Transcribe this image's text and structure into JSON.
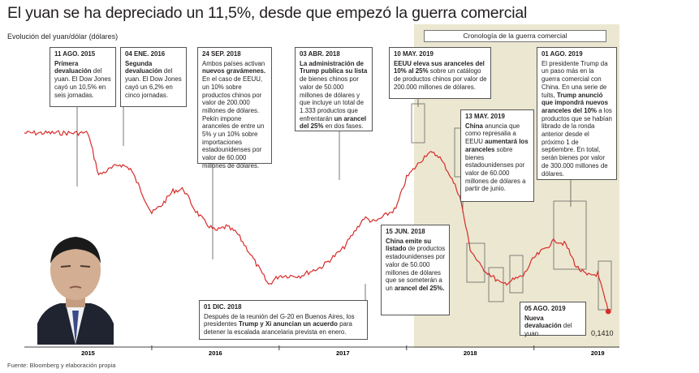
{
  "title": "El yuan se ha depreciado un 11,5%, desde que empezó la guerra comercial",
  "subtitle": "Evolución del yuan/dólar (dólares)",
  "source": "Fuente: Bloomberg y elaboración propia",
  "timeline_label": "Cronología de la guerra comercial",
  "final_value": "0,1410",
  "colors": {
    "line": "#d62c2a",
    "shade": "#ece7d0",
    "accent": "#d62c2a"
  },
  "chart_data": {
    "type": "line",
    "x_ticks": [
      "2015",
      "2016",
      "2017",
      "2018",
      "2019"
    ],
    "series_color": "#d62c2a",
    "approx_y_range": [
      0.14,
      0.165
    ],
    "series": [
      {
        "values_by_date": [
          [
            "2015-01",
            0.161
          ],
          [
            "2015-07",
            0.161
          ],
          [
            "2015-08",
            0.1563
          ],
          [
            "2015-10",
            0.1575
          ],
          [
            "2015-11",
            0.157
          ],
          [
            "2015-12",
            0.1545
          ],
          [
            "2016-01",
            0.152
          ],
          [
            "2016-02",
            0.153
          ],
          [
            "2016-03",
            0.1545
          ],
          [
            "2016-04",
            0.1547
          ],
          [
            "2016-05",
            0.1525
          ],
          [
            "2016-06",
            0.151
          ],
          [
            "2016-07",
            0.15
          ],
          [
            "2016-08",
            0.1505
          ],
          [
            "2016-09",
            0.1498
          ],
          [
            "2016-10",
            0.148
          ],
          [
            "2016-11",
            0.146
          ],
          [
            "2016-12",
            0.144
          ],
          [
            "2017-01",
            0.145
          ],
          [
            "2017-03",
            0.145
          ],
          [
            "2017-05",
            0.146
          ],
          [
            "2017-07",
            0.148
          ],
          [
            "2017-09",
            0.1515
          ],
          [
            "2017-10",
            0.151
          ],
          [
            "2017-12",
            0.1525
          ],
          [
            "2018-01",
            0.156
          ],
          [
            "2018-03",
            0.1588
          ],
          [
            "2018-04",
            0.1585
          ],
          [
            "2018-05",
            0.1565
          ],
          [
            "2018-06",
            0.154
          ],
          [
            "2018-07",
            0.148
          ],
          [
            "2018-08",
            0.146
          ],
          [
            "2018-10",
            0.144
          ],
          [
            "2018-11",
            0.1445
          ],
          [
            "2018-12",
            0.145
          ],
          [
            "2019-01",
            0.147
          ],
          [
            "2019-03",
            0.149
          ],
          [
            "2019-04",
            0.1485
          ],
          [
            "2019-05",
            0.146
          ],
          [
            "2019-06",
            0.145
          ],
          [
            "2019-07",
            0.1452
          ],
          [
            "2019-08",
            0.141
          ]
        ]
      }
    ]
  },
  "annotations": [
    {
      "date": "11 AGO. 2015",
      "html": "<b>Primera devaluación</b> del yuan. El Dow Jones cayó un 10,5% en seis jornadas."
    },
    {
      "date": "04 ENE. 2016",
      "html": "<b>Segunda devaluación</b> del yuan. El Dow Jones cayó un 6,2% en cinco jornadas."
    },
    {
      "date": "24 SEP. 2018",
      "html": "Ambos países activan <b>nuevos gravámenes.</b> En el caso de EEUU, un 10% sobre productos chinos por valor de 200.000 millones de dólares. Pekín impone aranceles de entre un 5% y un 10% sobre importaciones estadounidenses por valor de 60.000 millones de dólares."
    },
    {
      "date": "03 ABR. 2018",
      "html": "<b>La administración de Trump publica su lista</b> de bienes chinos por valor de 50.000 millones de dólares y que incluye un total de 1.333 productos que enfrentarán <b>un arancel del 25%</b> en dos fases."
    },
    {
      "date": "10 MAY. 2019",
      "html": "<b>EEUU eleva sus aranceles del 10% al 25%</b> sobre un catálogo de productos chinos por valor de 200.000 millones de dólares."
    },
    {
      "date": "13 MAY. 2019",
      "html": "<b>China</b> anuncia que como represalia a EEUU <b>aumentará los aranceles</b> sobre bienes estadounidenses por valor de 60.000 millones de dólares a partir de junio."
    },
    {
      "date": "01 AGO. 2019",
      "html": "El presidente Trump da un paso más en la guerra comercial con China. En una serie de tuits, <b>Trump anunció que impondrá nuevos aranceles del 10%</b> a los productos que se habían librado de la ronda anterior desde el próximo 1 de septiembre. En total, serán bienes por valor de 300.000 millones de dólares."
    },
    {
      "date": "15 JUN. 2018",
      "html": "<b>China emite su listado</b> de productos estadounidenses por valor de 50.000 millones de dólares que se someterán a un <b>arancel del 25%.</b>"
    },
    {
      "date": "01 DIC. 2018",
      "html": "Después de la reunión del G-20 en Buenos Aires, los presidentes <b>Trump y Xi anuncian un acuerdo</b> para detener la escalada arancelaria prevista en enero."
    },
    {
      "date": "05 AGO. 2019",
      "html": "<b>Nueva devaluación</b> del yuan"
    }
  ]
}
